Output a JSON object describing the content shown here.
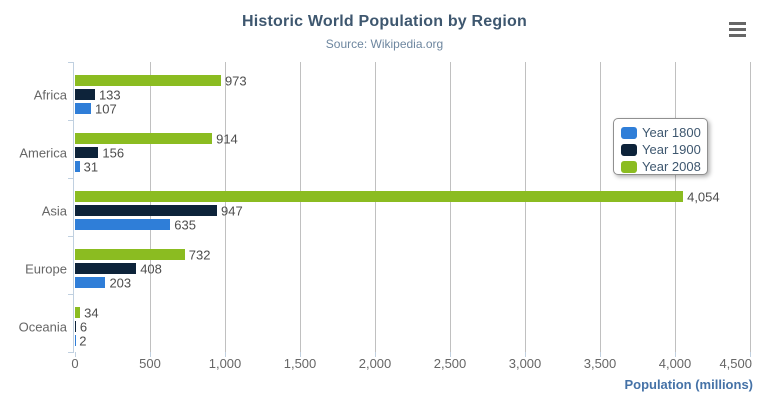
{
  "chart_data": {
    "type": "bar",
    "orientation": "horizontal",
    "title": "Historic World Population by Region",
    "subtitle": "Source: Wikipedia.org",
    "xlabel": "Population (millions)",
    "ylabel": "",
    "categories": [
      "Africa",
      "America",
      "Asia",
      "Europe",
      "Oceania"
    ],
    "series": [
      {
        "name": "Year 1800",
        "color": "#2f7ed8",
        "values": [
          107,
          31,
          635,
          203,
          2
        ]
      },
      {
        "name": "Year 1900",
        "color": "#0d233a",
        "values": [
          133,
          156,
          947,
          408,
          6
        ]
      },
      {
        "name": "Year 2008",
        "color": "#8bbc21",
        "values": [
          973,
          914,
          4054,
          732,
          34
        ]
      }
    ],
    "bar_order_top_to_bottom": [
      "Year 2008",
      "Year 1900",
      "Year 1800"
    ],
    "xlim": [
      0,
      4500
    ],
    "ticks": [
      0,
      500,
      1000,
      1500,
      2000,
      2500,
      3000,
      3500,
      4000,
      4500
    ],
    "grid": "vertical-gridlines-on",
    "legend_position": "right-middle",
    "data_labels": "shown-at-bar-end-with-thousands-separators"
  },
  "ui": {
    "context_menu_icon": "hamburger-icon"
  },
  "colors": {
    "title": "#3E576F",
    "subtitle": "#6D869F",
    "axis_title": "#4572A7",
    "tick_label": "#666666",
    "category_label": "#666666",
    "data_label": "#4d4d4d",
    "gridline": "#C0C0C0",
    "axis_line": "#C0D0E0",
    "legend_border": "#909090",
    "background": "#ffffff"
  }
}
